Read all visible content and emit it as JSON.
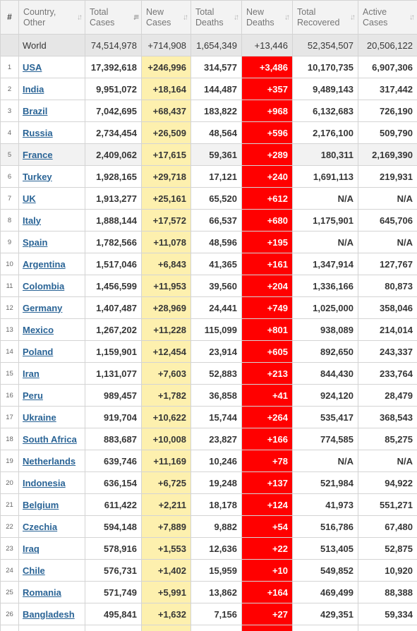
{
  "header": {
    "num": "#",
    "country": "Country, Other",
    "total_cases": "Total Cases",
    "new_cases": "New Cases",
    "total_deaths": "Total Deaths",
    "new_deaths": "New Deaths",
    "total_recovered": "Total Recovered",
    "active_cases": "Active Cases",
    "sort_icon": "sort-arrows-icon"
  },
  "world": {
    "country": "World",
    "total_cases": "74,514,978",
    "new_cases": "+714,908",
    "total_deaths": "1,654,349",
    "new_deaths": "+13,446",
    "total_recovered": "52,354,507",
    "active_cases": "20,506,122"
  },
  "colors": {
    "new_cases_bg": "#fdf0ae",
    "new_deaths_bg": "#ff0000",
    "link": "#2a6496",
    "world_row_bg": "#e6e6e6"
  },
  "rows": [
    {
      "num": "1",
      "country": "USA",
      "total_cases": "17,392,618",
      "new_cases": "+246,996",
      "total_deaths": "314,577",
      "new_deaths": "+3,486",
      "total_recovered": "10,170,735",
      "active_cases": "6,907,306"
    },
    {
      "num": "2",
      "country": "India",
      "total_cases": "9,951,072",
      "new_cases": "+18,164",
      "total_deaths": "144,487",
      "new_deaths": "+357",
      "total_recovered": "9,489,143",
      "active_cases": "317,442"
    },
    {
      "num": "3",
      "country": "Brazil",
      "total_cases": "7,042,695",
      "new_cases": "+68,437",
      "total_deaths": "183,822",
      "new_deaths": "+968",
      "total_recovered": "6,132,683",
      "active_cases": "726,190"
    },
    {
      "num": "4",
      "country": "Russia",
      "total_cases": "2,734,454",
      "new_cases": "+26,509",
      "total_deaths": "48,564",
      "new_deaths": "+596",
      "total_recovered": "2,176,100",
      "active_cases": "509,790"
    },
    {
      "num": "5",
      "country": "France",
      "total_cases": "2,409,062",
      "new_cases": "+17,615",
      "total_deaths": "59,361",
      "new_deaths": "+289",
      "total_recovered": "180,311",
      "active_cases": "2,169,390",
      "highlight": true
    },
    {
      "num": "6",
      "country": "Turkey",
      "total_cases": "1,928,165",
      "new_cases": "+29,718",
      "total_deaths": "17,121",
      "new_deaths": "+240",
      "total_recovered": "1,691,113",
      "active_cases": "219,931"
    },
    {
      "num": "7",
      "country": "UK",
      "total_cases": "1,913,277",
      "new_cases": "+25,161",
      "total_deaths": "65,520",
      "new_deaths": "+612",
      "total_recovered": "N/A",
      "active_cases": "N/A"
    },
    {
      "num": "8",
      "country": "Italy",
      "total_cases": "1,888,144",
      "new_cases": "+17,572",
      "total_deaths": "66,537",
      "new_deaths": "+680",
      "total_recovered": "1,175,901",
      "active_cases": "645,706"
    },
    {
      "num": "9",
      "country": "Spain",
      "total_cases": "1,782,566",
      "new_cases": "+11,078",
      "total_deaths": "48,596",
      "new_deaths": "+195",
      "total_recovered": "N/A",
      "active_cases": "N/A"
    },
    {
      "num": "10",
      "country": "Argentina",
      "total_cases": "1,517,046",
      "new_cases": "+6,843",
      "total_deaths": "41,365",
      "new_deaths": "+161",
      "total_recovered": "1,347,914",
      "active_cases": "127,767"
    },
    {
      "num": "11",
      "country": "Colombia",
      "total_cases": "1,456,599",
      "new_cases": "+11,953",
      "total_deaths": "39,560",
      "new_deaths": "+204",
      "total_recovered": "1,336,166",
      "active_cases": "80,873"
    },
    {
      "num": "12",
      "country": "Germany",
      "total_cases": "1,407,487",
      "new_cases": "+28,969",
      "total_deaths": "24,441",
      "new_deaths": "+749",
      "total_recovered": "1,025,000",
      "active_cases": "358,046"
    },
    {
      "num": "13",
      "country": "Mexico",
      "total_cases": "1,267,202",
      "new_cases": "+11,228",
      "total_deaths": "115,099",
      "new_deaths": "+801",
      "total_recovered": "938,089",
      "active_cases": "214,014"
    },
    {
      "num": "14",
      "country": "Poland",
      "total_cases": "1,159,901",
      "new_cases": "+12,454",
      "total_deaths": "23,914",
      "new_deaths": "+605",
      "total_recovered": "892,650",
      "active_cases": "243,337"
    },
    {
      "num": "15",
      "country": "Iran",
      "total_cases": "1,131,077",
      "new_cases": "+7,603",
      "total_deaths": "52,883",
      "new_deaths": "+213",
      "total_recovered": "844,430",
      "active_cases": "233,764"
    },
    {
      "num": "16",
      "country": "Peru",
      "total_cases": "989,457",
      "new_cases": "+1,782",
      "total_deaths": "36,858",
      "new_deaths": "+41",
      "total_recovered": "924,120",
      "active_cases": "28,479"
    },
    {
      "num": "17",
      "country": "Ukraine",
      "total_cases": "919,704",
      "new_cases": "+10,622",
      "total_deaths": "15,744",
      "new_deaths": "+264",
      "total_recovered": "535,417",
      "active_cases": "368,543"
    },
    {
      "num": "18",
      "country": "South Africa",
      "total_cases": "883,687",
      "new_cases": "+10,008",
      "total_deaths": "23,827",
      "new_deaths": "+166",
      "total_recovered": "774,585",
      "active_cases": "85,275"
    },
    {
      "num": "19",
      "country": "Netherlands",
      "total_cases": "639,746",
      "new_cases": "+11,169",
      "total_deaths": "10,246",
      "new_deaths": "+78",
      "total_recovered": "N/A",
      "active_cases": "N/A"
    },
    {
      "num": "20",
      "country": "Indonesia",
      "total_cases": "636,154",
      "new_cases": "+6,725",
      "total_deaths": "19,248",
      "new_deaths": "+137",
      "total_recovered": "521,984",
      "active_cases": "94,922"
    },
    {
      "num": "21",
      "country": "Belgium",
      "total_cases": "611,422",
      "new_cases": "+2,211",
      "total_deaths": "18,178",
      "new_deaths": "+124",
      "total_recovered": "41,973",
      "active_cases": "551,271"
    },
    {
      "num": "22",
      "country": "Czechia",
      "total_cases": "594,148",
      "new_cases": "+7,889",
      "total_deaths": "9,882",
      "new_deaths": "+54",
      "total_recovered": "516,786",
      "active_cases": "67,480"
    },
    {
      "num": "23",
      "country": "Iraq",
      "total_cases": "578,916",
      "new_cases": "+1,553",
      "total_deaths": "12,636",
      "new_deaths": "+22",
      "total_recovered": "513,405",
      "active_cases": "52,875"
    },
    {
      "num": "24",
      "country": "Chile",
      "total_cases": "576,731",
      "new_cases": "+1,402",
      "total_deaths": "15,959",
      "new_deaths": "+10",
      "total_recovered": "549,852",
      "active_cases": "10,920"
    },
    {
      "num": "25",
      "country": "Romania",
      "total_cases": "571,749",
      "new_cases": "+5,991",
      "total_deaths": "13,862",
      "new_deaths": "+164",
      "total_recovered": "469,499",
      "active_cases": "88,388"
    },
    {
      "num": "26",
      "country": "Bangladesh",
      "total_cases": "495,841",
      "new_cases": "+1,632",
      "total_deaths": "7,156",
      "new_deaths": "+27",
      "total_recovered": "429,351",
      "active_cases": "59,334"
    }
  ]
}
